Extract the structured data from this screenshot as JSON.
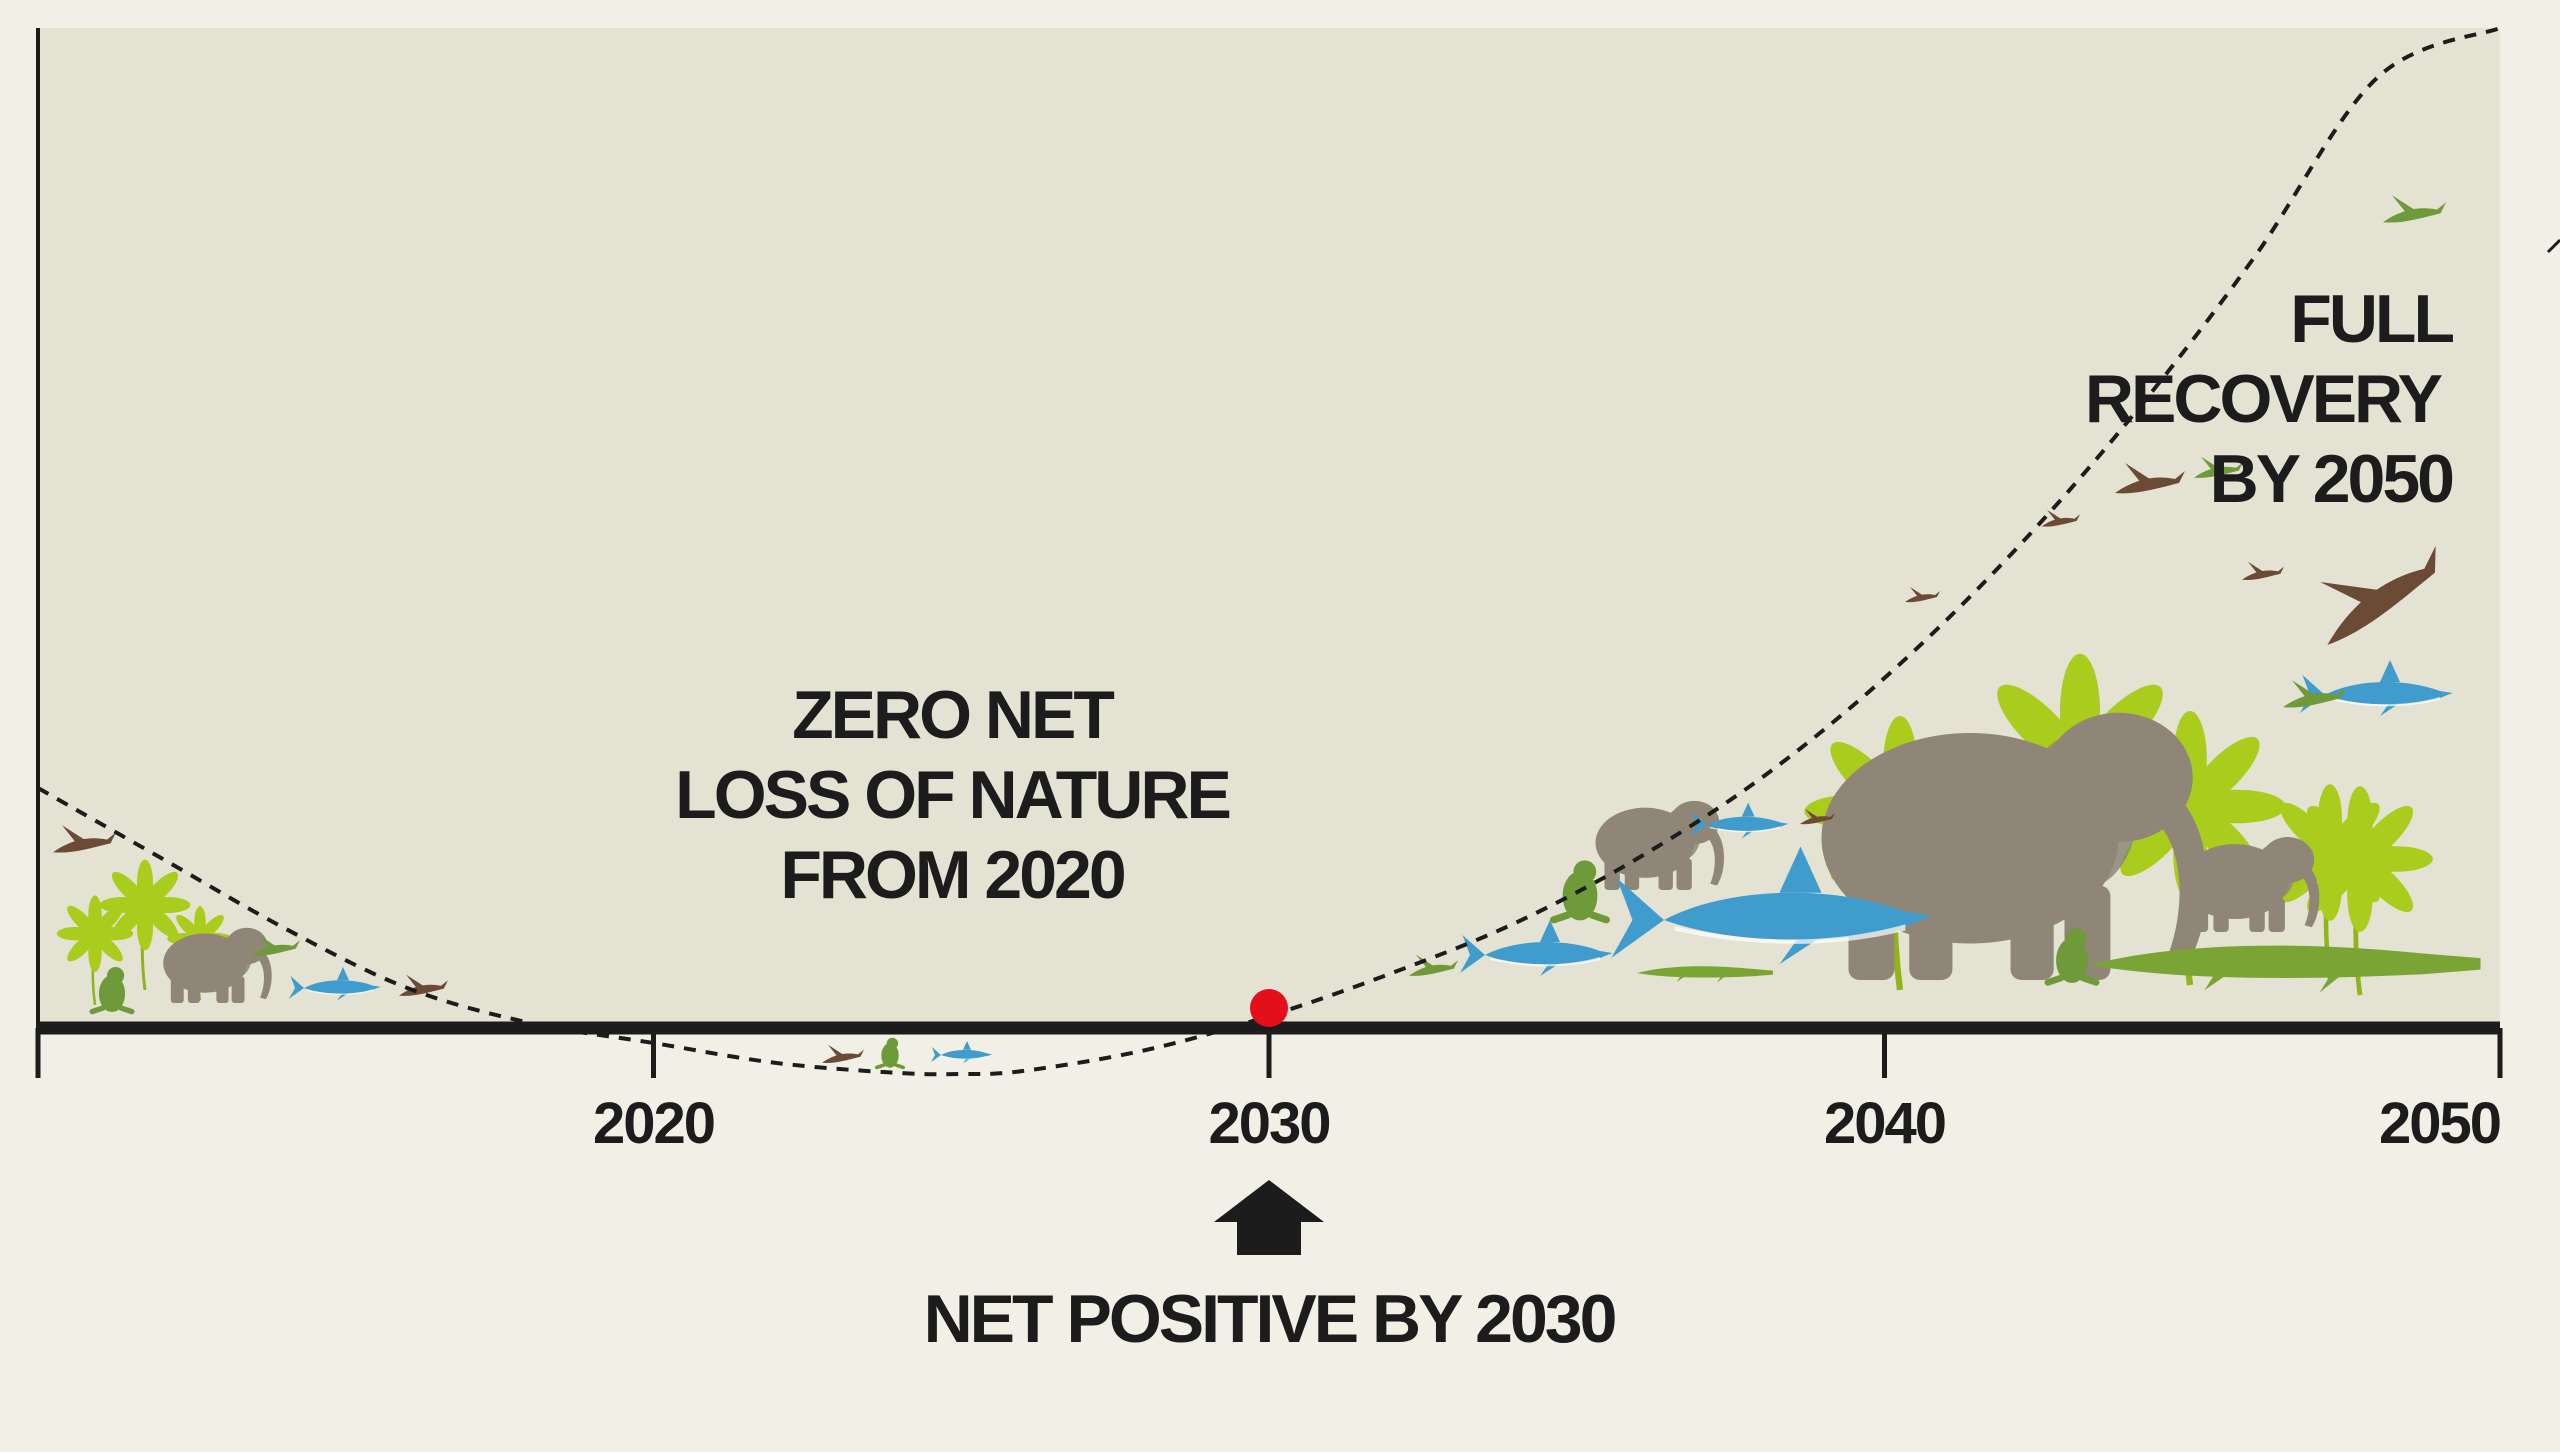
{
  "chart_data": {
    "type": "line",
    "title": "",
    "xlabel": "",
    "ylabel": "",
    "xlim": [
      2010,
      2050
    ],
    "x_ticks": [
      "2020",
      "2030",
      "2040",
      "2050"
    ],
    "y_baseline": 0,
    "series": [
      {
        "style": "dashed",
        "color": "#1c1c1c",
        "x": [
          2010,
          2012,
          2014,
          2016,
          2018,
          2020,
          2022,
          2024,
          2025,
          2026,
          2028,
          2030,
          2032,
          2034,
          2036,
          2038,
          2040,
          2042,
          2044,
          2046,
          2048,
          2050
        ],
        "y": [
          24,
          17,
          10,
          4,
          0.5,
          -1.5,
          -3.5,
          -4.5,
          -4.6,
          -4.3,
          -2.2,
          1.2,
          5.5,
          10.5,
          17,
          25,
          35,
          47,
          61,
          77,
          95,
          100
        ]
      }
    ],
    "point": {
      "x": 2030,
      "y": 1.2,
      "color": "#e3101b"
    },
    "annotations": [
      {
        "lines": [
          "ZERO NET",
          "LOSS OF NATURE",
          "FROM 2020"
        ]
      },
      {
        "lines": [
          "FULL",
          "RECOVERY",
          "BY 2050"
        ]
      },
      {
        "lines": [
          "NET POSITIVE BY 2030"
        ],
        "marker": "up-arrow",
        "x": 2030
      }
    ],
    "colors": {
      "plot_bg": "#e4e2d2",
      "page_bg": "#f1efe6",
      "axis": "#1c1c1c",
      "leaf": "#a9cc1d",
      "leaf_dark": "#83ad16",
      "mammal": "#8f8677",
      "shark": "#3f9ccc",
      "reptile": "#7aa534",
      "bird": "#6b4a36",
      "frog": "#6f9a3a"
    },
    "decoration_icons": [
      "plant-icon",
      "elephant-icon",
      "shark-icon",
      "crocodile-icon",
      "frog-icon",
      "bird-icon",
      "insect-icon"
    ]
  }
}
